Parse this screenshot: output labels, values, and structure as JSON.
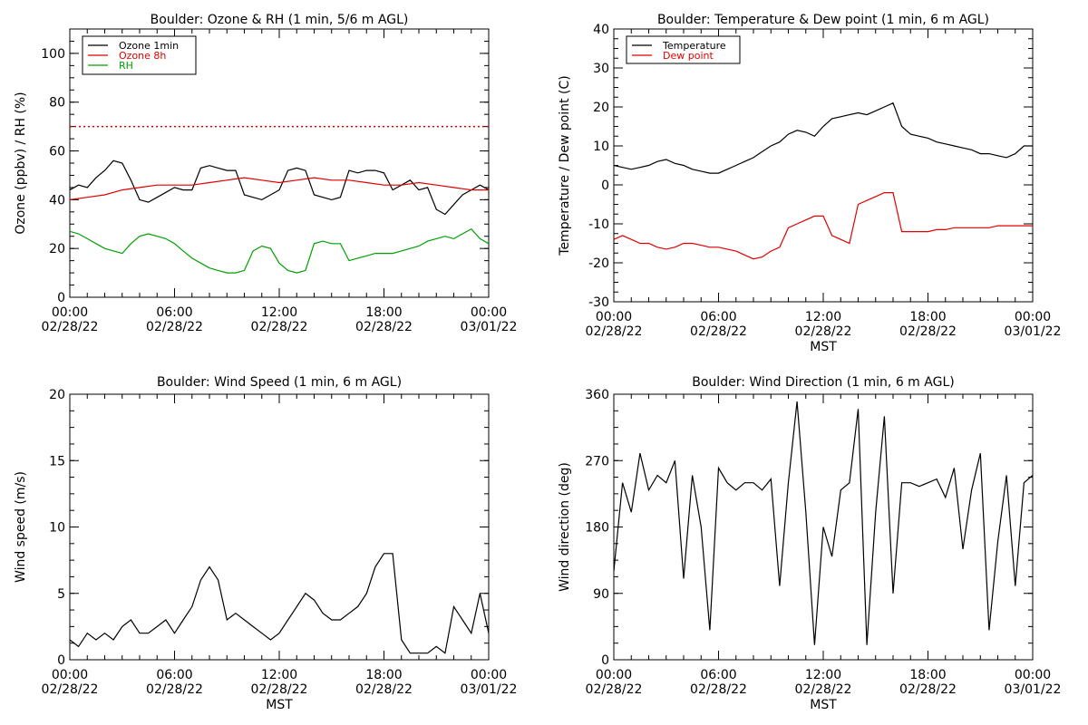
{
  "chart_data": [
    {
      "type": "line",
      "title": "Boulder: Ozone & RH (1 min, 5/6 m AGL)",
      "ylabel": "Ozone (ppbv) / RH (%)",
      "xlabel": "",
      "ylim": [
        0,
        110
      ],
      "yticks": [
        0,
        20,
        40,
        60,
        80,
        100
      ],
      "xlim": [
        "2022-02-28 00:00",
        "2022-03-01 00:00"
      ],
      "xticks": [
        {
          "time": "00:00",
          "date": "02/28/22"
        },
        {
          "time": "06:00",
          "date": "02/28/22"
        },
        {
          "time": "12:00",
          "date": "02/28/22"
        },
        {
          "time": "18:00",
          "date": "02/28/22"
        },
        {
          "time": "00:00",
          "date": "03/01/22"
        }
      ],
      "legend": {
        "placement": "top-left",
        "entries": [
          "Ozone 1min",
          "Ozone 8h",
          "RH"
        ]
      },
      "reference_line": {
        "y": 70,
        "color": "#e00000",
        "style": "dotted"
      },
      "series": [
        {
          "name": "Ozone 1min",
          "color": "#000000",
          "x": [
            0,
            0.5,
            1,
            1.5,
            2,
            2.5,
            3,
            3.5,
            4,
            4.5,
            5,
            5.5,
            6,
            6.5,
            7,
            7.5,
            8,
            8.5,
            9,
            9.5,
            10,
            10.5,
            11,
            11.5,
            12,
            12.5,
            13,
            13.5,
            14,
            14.5,
            15,
            15.5,
            16,
            16.5,
            17,
            17.5,
            18,
            18.5,
            19,
            19.5,
            20,
            20.5,
            21,
            21.5,
            22,
            22.5,
            23,
            23.5,
            24
          ],
          "y": [
            44,
            46,
            45,
            49,
            52,
            56,
            55,
            48,
            40,
            39,
            41,
            43,
            45,
            44,
            44,
            53,
            54,
            53,
            52,
            52,
            42,
            41,
            40,
            42,
            44,
            52,
            53,
            52,
            42,
            41,
            40,
            41,
            52,
            51,
            52,
            52,
            51,
            44,
            46,
            48,
            44,
            45,
            36,
            34,
            38,
            42,
            44,
            46,
            44
          ]
        },
        {
          "name": "Ozone 8h",
          "color": "#e00000",
          "x": [
            0,
            1,
            2,
            3,
            4,
            5,
            6,
            7,
            8,
            9,
            10,
            11,
            12,
            13,
            14,
            15,
            16,
            17,
            18,
            19,
            20,
            21,
            22,
            23,
            24
          ],
          "y": [
            40,
            41,
            42,
            44,
            45,
            46,
            46,
            46,
            47,
            48,
            49,
            48,
            47,
            48,
            49,
            48,
            48,
            47,
            46,
            46,
            47,
            46,
            45,
            44,
            44
          ]
        },
        {
          "name": "RH",
          "color": "#00a000",
          "x": [
            0,
            0.5,
            1,
            1.5,
            2,
            2.5,
            3,
            3.5,
            4,
            4.5,
            5,
            5.5,
            6,
            6.5,
            7,
            7.5,
            8,
            8.5,
            9,
            9.5,
            10,
            10.5,
            11,
            11.5,
            12,
            12.5,
            13,
            13.5,
            14,
            14.5,
            15,
            15.5,
            16,
            16.5,
            17,
            17.5,
            18,
            18.5,
            19,
            19.5,
            20,
            20.5,
            21,
            21.5,
            22,
            22.5,
            23,
            23.5,
            24
          ],
          "y": [
            27,
            26,
            24,
            22,
            20,
            19,
            18,
            22,
            25,
            26,
            25,
            24,
            22,
            19,
            16,
            14,
            12,
            11,
            10,
            10,
            11,
            19,
            21,
            20,
            14,
            11,
            10,
            11,
            22,
            23,
            22,
            22,
            15,
            16,
            17,
            18,
            18,
            18,
            19,
            20,
            21,
            23,
            24,
            25,
            24,
            26,
            28,
            24,
            22
          ]
        }
      ]
    },
    {
      "type": "line",
      "title": "Boulder: Temperature & Dew point (1 min, 6 m AGL)",
      "ylabel": "Temperature / Dew point (C)",
      "xlabel": "MST",
      "ylim": [
        -30,
        40
      ],
      "yticks": [
        -30,
        -20,
        -10,
        0,
        10,
        20,
        30,
        40
      ],
      "xlim": [
        "2022-02-28 00:00",
        "2022-03-01 00:00"
      ],
      "xticks": [
        {
          "time": "00:00",
          "date": "02/28/22"
        },
        {
          "time": "06:00",
          "date": "02/28/22"
        },
        {
          "time": "12:00",
          "date": "02/28/22"
        },
        {
          "time": "18:00",
          "date": "02/28/22"
        },
        {
          "time": "00:00",
          "date": "03/01/22"
        }
      ],
      "legend": {
        "placement": "top-left",
        "entries": [
          "Temperature",
          "Dew point"
        ]
      },
      "series": [
        {
          "name": "Temperature",
          "color": "#000000",
          "x": [
            0,
            0.5,
            1,
            1.5,
            2,
            2.5,
            3,
            3.5,
            4,
            4.5,
            5,
            5.5,
            6,
            6.5,
            7,
            7.5,
            8,
            8.5,
            9,
            9.5,
            10,
            10.5,
            11,
            11.5,
            12,
            12.5,
            13,
            13.5,
            14,
            14.5,
            15,
            15.5,
            16,
            16.5,
            17,
            17.5,
            18,
            18.5,
            19,
            19.5,
            20,
            20.5,
            21,
            21.5,
            22,
            22.5,
            23,
            23.5,
            24
          ],
          "y": [
            5,
            4.5,
            4,
            4.5,
            5,
            6,
            6.5,
            5.5,
            5,
            4,
            3.5,
            3,
            3,
            4,
            5,
            6,
            7,
            8.5,
            10,
            11,
            13,
            14,
            13.5,
            12.5,
            15,
            17,
            17.5,
            18,
            18.5,
            18,
            19,
            20,
            21,
            15,
            13,
            12.5,
            12,
            11,
            10.5,
            10,
            9.5,
            9,
            8,
            8,
            7.5,
            7,
            8,
            10,
            10
          ]
        },
        {
          "name": "Dew point",
          "color": "#e00000",
          "x": [
            0,
            0.5,
            1,
            1.5,
            2,
            2.5,
            3,
            3.5,
            4,
            4.5,
            5,
            5.5,
            6,
            6.5,
            7,
            7.5,
            8,
            8.5,
            9,
            9.5,
            10,
            10.5,
            11,
            11.5,
            12,
            12.5,
            13,
            13.5,
            14,
            14.5,
            15,
            15.5,
            16,
            16.5,
            17,
            17.5,
            18,
            18.5,
            19,
            19.5,
            20,
            20.5,
            21,
            21.5,
            22,
            22.5,
            23,
            23.5,
            24
          ],
          "y": [
            -14,
            -13,
            -14,
            -15,
            -15,
            -16,
            -16.5,
            -16,
            -15,
            -15,
            -15.5,
            -16,
            -16,
            -16.5,
            -17,
            -18,
            -19,
            -18.5,
            -17,
            -16,
            -11,
            -10,
            -9,
            -8,
            -8,
            -13,
            -14,
            -15,
            -5,
            -4,
            -3,
            -2,
            -2,
            -12,
            -12,
            -12,
            -12,
            -11.5,
            -11.5,
            -11,
            -11,
            -11,
            -11,
            -11,
            -10.5,
            -10.5,
            -10.5,
            -10.5,
            -10.5
          ]
        }
      ]
    },
    {
      "type": "line",
      "title": "Boulder: Wind Speed (1 min, 6 m AGL)",
      "ylabel": "Wind speed (m/s)",
      "xlabel": "MST",
      "ylim": [
        0,
        20
      ],
      "yticks": [
        0,
        5,
        10,
        15,
        20
      ],
      "xlim": [
        "2022-02-28 00:00",
        "2022-03-01 00:00"
      ],
      "xticks": [
        {
          "time": "00:00",
          "date": "02/28/22"
        },
        {
          "time": "06:00",
          "date": "02/28/22"
        },
        {
          "time": "12:00",
          "date": "02/28/22"
        },
        {
          "time": "18:00",
          "date": "02/28/22"
        },
        {
          "time": "00:00",
          "date": "03/01/22"
        }
      ],
      "series": [
        {
          "name": "",
          "color": "#000000",
          "x": [
            0,
            0.5,
            1,
            1.5,
            2,
            2.5,
            3,
            3.5,
            4,
            4.5,
            5,
            5.5,
            6,
            6.5,
            7,
            7.5,
            8,
            8.5,
            9,
            9.5,
            10,
            10.5,
            11,
            11.5,
            12,
            12.5,
            13,
            13.5,
            14,
            14.5,
            15,
            15.5,
            16,
            16.5,
            17,
            17.5,
            18,
            18.5,
            19,
            19.5,
            20,
            20.5,
            21,
            21.5,
            22,
            22.5,
            23,
            23.5,
            24
          ],
          "y": [
            1.5,
            1,
            2,
            1.5,
            2,
            1.5,
            2.5,
            3,
            2,
            2,
            2.5,
            3,
            2,
            3,
            4,
            6,
            7,
            6,
            3,
            3.5,
            3,
            2.5,
            2,
            1.5,
            2,
            3,
            4,
            5,
            4.5,
            3.5,
            3,
            3,
            3.5,
            4,
            5,
            7,
            8,
            8,
            1.5,
            0.5,
            0.5,
            0.5,
            1,
            0.5,
            4,
            3,
            2,
            5,
            2
          ]
        }
      ]
    },
    {
      "type": "line",
      "title": "Boulder: Wind Direction (1 min, 6 m AGL)",
      "ylabel": "Wind direction (deg)",
      "xlabel": "MST",
      "ylim": [
        0,
        360
      ],
      "yticks": [
        0,
        90,
        180,
        270,
        360
      ],
      "xlim": [
        "2022-02-28 00:00",
        "2022-03-01 00:00"
      ],
      "xticks": [
        {
          "time": "00:00",
          "date": "02/28/22"
        },
        {
          "time": "06:00",
          "date": "02/28/22"
        },
        {
          "time": "12:00",
          "date": "02/28/22"
        },
        {
          "time": "18:00",
          "date": "02/28/22"
        },
        {
          "time": "00:00",
          "date": "03/01/22"
        }
      ],
      "series": [
        {
          "name": "",
          "color": "#000000",
          "x": [
            0,
            0.5,
            1,
            1.5,
            2,
            2.5,
            3,
            3.5,
            4,
            4.5,
            5,
            5.5,
            6,
            6.5,
            7,
            7.5,
            8,
            8.5,
            9,
            9.5,
            10,
            10.5,
            11,
            11.5,
            12,
            12.5,
            13,
            13.5,
            14,
            14.5,
            15,
            15.5,
            16,
            16.5,
            17,
            17.5,
            18,
            18.5,
            19,
            19.5,
            20,
            20.5,
            21,
            21.5,
            22,
            22.5,
            23,
            23.5,
            24
          ],
          "y": [
            120,
            240,
            200,
            280,
            230,
            250,
            240,
            270,
            110,
            250,
            180,
            40,
            260,
            240,
            230,
            240,
            240,
            230,
            245,
            100,
            240,
            350,
            200,
            20,
            180,
            140,
            230,
            240,
            340,
            20,
            200,
            330,
            90,
            240,
            240,
            235,
            240,
            245,
            220,
            260,
            150,
            230,
            280,
            40,
            160,
            250,
            100,
            240,
            250
          ]
        }
      ]
    }
  ]
}
